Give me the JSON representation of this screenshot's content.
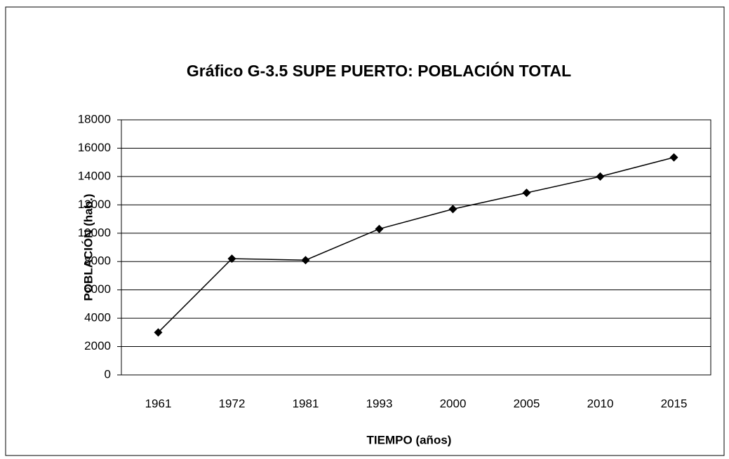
{
  "chart_data": {
    "type": "line",
    "title": "Gráfico G-3.5 SUPE PUERTO: POBLACIÓN TOTAL",
    "x_label": "TIEMPO (años)",
    "y_label": "POBLACIÓN (hab.)",
    "categories": [
      "1961",
      "1972",
      "1981",
      "1993",
      "2000",
      "2005",
      "2010",
      "2015"
    ],
    "values": [
      3000,
      8200,
      8100,
      10300,
      11700,
      12850,
      14000,
      15350
    ],
    "color": "#000000",
    "ylim": [
      0,
      18000
    ],
    "yticks": [
      0,
      2000,
      4000,
      6000,
      8000,
      10000,
      12000,
      14000,
      16000,
      18000
    ],
    "grid": true
  }
}
